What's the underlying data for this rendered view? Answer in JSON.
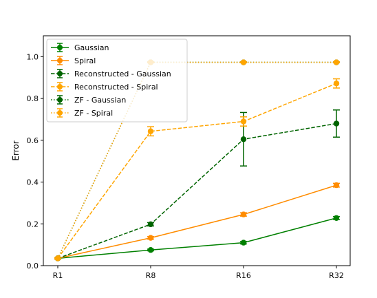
{
  "chart_data": {
    "type": "line",
    "categories": [
      "R1",
      "R8",
      "R16",
      "R32"
    ],
    "title": "",
    "xlabel": "",
    "ylabel": "Error",
    "ylim": [
      0.0,
      1.1
    ],
    "yticks": [
      "0.0",
      "0.2",
      "0.4",
      "0.6",
      "0.8",
      "1.0"
    ],
    "grid": false,
    "legend_position": "top-left",
    "series": [
      {
        "name": "Gaussian",
        "color": "#008000",
        "linestyle": "solid",
        "values": [
          0.035,
          0.075,
          0.11,
          0.228
        ],
        "errors": [
          0.003,
          0.004,
          0.006,
          0.007
        ]
      },
      {
        "name": "Spiral",
        "color": "#ff8c00",
        "linestyle": "solid",
        "values": [
          0.035,
          0.133,
          0.245,
          0.385
        ],
        "errors": [
          0.004,
          0.006,
          0.008,
          0.009
        ]
      },
      {
        "name": "Reconstructed - Gaussian",
        "color": "#006400",
        "linestyle": "dashed",
        "values": [
          0.035,
          0.198,
          0.605,
          0.68
        ],
        "errors": [
          0.003,
          0.008,
          0.128,
          0.065
        ]
      },
      {
        "name": "Reconstructed - Spiral",
        "color": "#ffa500",
        "linestyle": "dashed",
        "values": [
          0.035,
          0.643,
          0.69,
          0.872
        ],
        "errors": [
          0.003,
          0.022,
          0.022,
          0.022
        ]
      },
      {
        "name": "ZF - Gaussian",
        "color": "#006400",
        "linestyle": "dotted",
        "values": [
          0.035,
          0.973,
          0.973,
          0.973
        ],
        "errors": [
          0.002,
          0.002,
          0.002,
          0.002
        ]
      },
      {
        "name": "ZF - Spiral",
        "color": "#ffa500",
        "linestyle": "dotted",
        "values": [
          0.035,
          0.973,
          0.973,
          0.973
        ],
        "errors": [
          0.002,
          0.002,
          0.002,
          0.002
        ]
      }
    ]
  }
}
